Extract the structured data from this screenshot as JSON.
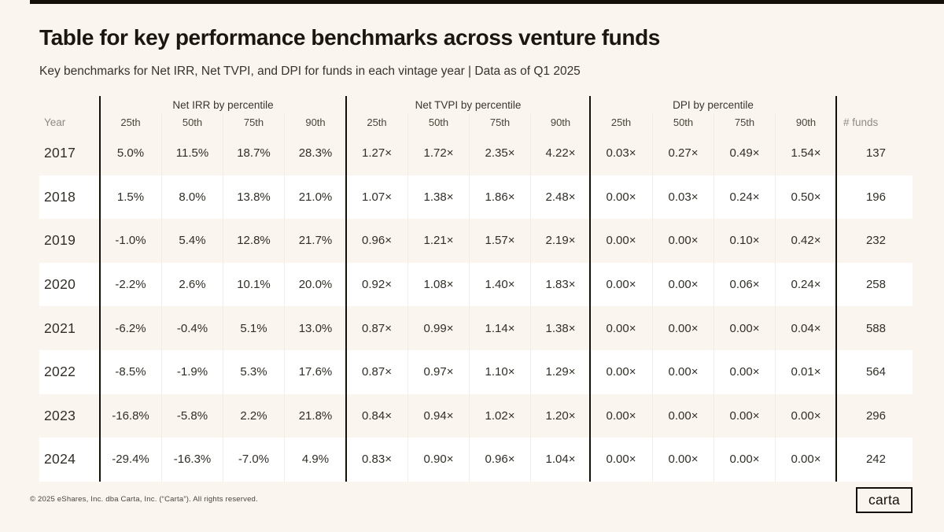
{
  "page": {
    "title": "Table for key performance benchmarks across venture funds",
    "subtitle": "Key benchmarks for Net IRR, Net TVPI, and DPI for funds in each vintage year | Data as of Q1 2025",
    "footer": "© 2025 eShares, Inc. dba Carta, Inc. (“Carta”). All rights reserved.",
    "logo_text": "carta"
  },
  "colors": {
    "background": "#FAF6EF",
    "row_alt": "#FFFFFF",
    "rule_black": "#121009",
    "text": "#312E27",
    "muted": "#8F8B82"
  },
  "chart_data": {
    "type": "table",
    "title": "Table for key performance benchmarks across venture funds",
    "subtitle": "Key benchmarks for Net IRR, Net TVPI, and DPI for funds in each vintage year | Data as of Q1 2025",
    "year_header": "Year",
    "funds_header": "# funds",
    "groups": [
      {
        "label": "Net IRR by percentile",
        "cols": [
          "25th",
          "50th",
          "75th",
          "90th"
        ]
      },
      {
        "label": "Net TVPI by percentile",
        "cols": [
          "25th",
          "50th",
          "75th",
          "90th"
        ]
      },
      {
        "label": "DPI by percentile",
        "cols": [
          "25th",
          "50th",
          "75th",
          "90th"
        ]
      }
    ],
    "rows": [
      {
        "year": "2017",
        "irr": [
          "5.0%",
          "11.5%",
          "18.7%",
          "28.3%"
        ],
        "tvpi": [
          "1.27×",
          "1.72×",
          "2.35×",
          "4.22×"
        ],
        "dpi": [
          "0.03×",
          "0.27×",
          "0.49×",
          "1.54×"
        ],
        "funds": "137"
      },
      {
        "year": "2018",
        "irr": [
          "1.5%",
          "8.0%",
          "13.8%",
          "21.0%"
        ],
        "tvpi": [
          "1.07×",
          "1.38×",
          "1.86×",
          "2.48×"
        ],
        "dpi": [
          "0.00×",
          "0.03×",
          "0.24×",
          "0.50×"
        ],
        "funds": "196"
      },
      {
        "year": "2019",
        "irr": [
          "-1.0%",
          "5.4%",
          "12.8%",
          "21.7%"
        ],
        "tvpi": [
          "0.96×",
          "1.21×",
          "1.57×",
          "2.19×"
        ],
        "dpi": [
          "0.00×",
          "0.00×",
          "0.10×",
          "0.42×"
        ],
        "funds": "232"
      },
      {
        "year": "2020",
        "irr": [
          "-2.2%",
          "2.6%",
          "10.1%",
          "20.0%"
        ],
        "tvpi": [
          "0.92×",
          "1.08×",
          "1.40×",
          "1.83×"
        ],
        "dpi": [
          "0.00×",
          "0.00×",
          "0.06×",
          "0.24×"
        ],
        "funds": "258"
      },
      {
        "year": "2021",
        "irr": [
          "-6.2%",
          "-0.4%",
          "5.1%",
          "13.0%"
        ],
        "tvpi": [
          "0.87×",
          "0.99×",
          "1.14×",
          "1.38×"
        ],
        "dpi": [
          "0.00×",
          "0.00×",
          "0.00×",
          "0.04×"
        ],
        "funds": "588"
      },
      {
        "year": "2022",
        "irr": [
          "-8.5%",
          "-1.9%",
          "5.3%",
          "17.6%"
        ],
        "tvpi": [
          "0.87×",
          "0.97×",
          "1.10×",
          "1.29×"
        ],
        "dpi": [
          "0.00×",
          "0.00×",
          "0.00×",
          "0.01×"
        ],
        "funds": "564"
      },
      {
        "year": "2023",
        "irr": [
          "-16.8%",
          "-5.8%",
          "2.2%",
          "21.8%"
        ],
        "tvpi": [
          "0.84×",
          "0.94×",
          "1.02×",
          "1.20×"
        ],
        "dpi": [
          "0.00×",
          "0.00×",
          "0.00×",
          "0.00×"
        ],
        "funds": "296"
      },
      {
        "year": "2024",
        "irr": [
          "-29.4%",
          "-16.3%",
          "-7.0%",
          "4.9%"
        ],
        "tvpi": [
          "0.83×",
          "0.90×",
          "0.96×",
          "1.04×"
        ],
        "dpi": [
          "0.00×",
          "0.00×",
          "0.00×",
          "0.00×"
        ],
        "funds": "242"
      }
    ]
  }
}
